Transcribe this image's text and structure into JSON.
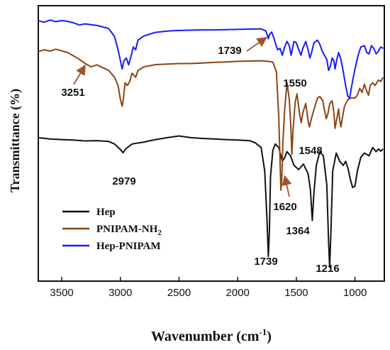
{
  "chart_data": {
    "type": "line",
    "xlabel": "Wavenumber (cm",
    "xlabel_sup": "-1",
    "xlabel_end": ")",
    "ylabel": "Transmittance (%)",
    "xlim": [
      3700,
      750
    ],
    "x_reversed": true,
    "ylim": [
      0,
      100
    ],
    "x_ticks": [
      3500,
      3000,
      2500,
      2000,
      1500,
      1000
    ],
    "y_ticks_shown": false,
    "grid": false,
    "legend_position": "bottom-left",
    "series": [
      {
        "name": "Hep",
        "name_sub": "",
        "color": "#111111",
        "points": [
          [
            3700,
            52.1
          ],
          [
            3600,
            51.6
          ],
          [
            3500,
            51.4
          ],
          [
            3400,
            51.2
          ],
          [
            3300,
            50.9
          ],
          [
            3200,
            51.0
          ],
          [
            3100,
            50.7
          ],
          [
            3050,
            49.8
          ],
          [
            3000,
            47.8
          ],
          [
            2979,
            46.6
          ],
          [
            2950,
            48.2
          ],
          [
            2900,
            49.8
          ],
          [
            2800,
            50.5
          ],
          [
            2700,
            51.4
          ],
          [
            2600,
            52.1
          ],
          [
            2500,
            52.7
          ],
          [
            2400,
            52.1
          ],
          [
            2300,
            51.8
          ],
          [
            2200,
            51.6
          ],
          [
            2100,
            51.4
          ],
          [
            2000,
            51.2
          ],
          [
            1900,
            51.0
          ],
          [
            1850,
            50.2
          ],
          [
            1800,
            48.5
          ],
          [
            1770,
            40.0
          ],
          [
            1750,
            22.0
          ],
          [
            1739,
            9.0
          ],
          [
            1730,
            18.0
          ],
          [
            1720,
            38.0
          ],
          [
            1700,
            47.5
          ],
          [
            1680,
            49.8
          ],
          [
            1650,
            48.5
          ],
          [
            1620,
            43.5
          ],
          [
            1600,
            44.8
          ],
          [
            1580,
            47.0
          ],
          [
            1550,
            45.5
          ],
          [
            1520,
            42.0
          ],
          [
            1480,
            40.5
          ],
          [
            1440,
            42.5
          ],
          [
            1400,
            39.0
          ],
          [
            1380,
            33.0
          ],
          [
            1364,
            22.0
          ],
          [
            1350,
            32.0
          ],
          [
            1330,
            42.0
          ],
          [
            1300,
            47.0
          ],
          [
            1270,
            45.5
          ],
          [
            1240,
            35.0
          ],
          [
            1225,
            14.0
          ],
          [
            1216,
            5.0
          ],
          [
            1205,
            18.0
          ],
          [
            1190,
            40.0
          ],
          [
            1160,
            46.5
          ],
          [
            1130,
            43.5
          ],
          [
            1100,
            42.0
          ],
          [
            1080,
            43.5
          ],
          [
            1060,
            41.0
          ],
          [
            1040,
            37.0
          ],
          [
            1020,
            34.0
          ],
          [
            1000,
            34.5
          ],
          [
            980,
            40.0
          ],
          [
            950,
            45.0
          ],
          [
            920,
            46.5
          ],
          [
            880,
            45.5
          ],
          [
            850,
            48.5
          ],
          [
            820,
            47.0
          ],
          [
            800,
            48.0
          ],
          [
            780,
            47.2
          ],
          [
            760,
            48.0
          ]
        ]
      },
      {
        "name": "PNIPAM-NH",
        "name_sub": "2",
        "color": "#8b4513",
        "points": [
          [
            3700,
            83.3
          ],
          [
            3650,
            84.0
          ],
          [
            3600,
            83.5
          ],
          [
            3550,
            84.2
          ],
          [
            3500,
            83.6
          ],
          [
            3450,
            83.0
          ],
          [
            3400,
            81.8
          ],
          [
            3350,
            80.5
          ],
          [
            3300,
            79.0
          ],
          [
            3251,
            77.8
          ],
          [
            3200,
            78.5
          ],
          [
            3150,
            77.5
          ],
          [
            3100,
            76.5
          ],
          [
            3050,
            74.0
          ],
          [
            3020,
            71.0
          ],
          [
            3000,
            66.0
          ],
          [
            2985,
            63.5
          ],
          [
            2975,
            66.0
          ],
          [
            2960,
            72.0
          ],
          [
            2940,
            71.0
          ],
          [
            2920,
            72.5
          ],
          [
            2900,
            75.5
          ],
          [
            2870,
            74.0
          ],
          [
            2850,
            76.5
          ],
          [
            2800,
            77.8
          ],
          [
            2750,
            78.2
          ],
          [
            2700,
            78.6
          ],
          [
            2600,
            78.8
          ],
          [
            2500,
            79.0
          ],
          [
            2400,
            79.0
          ],
          [
            2300,
            79.2
          ],
          [
            2200,
            79.4
          ],
          [
            2100,
            79.6
          ],
          [
            2000,
            79.8
          ],
          [
            1900,
            79.9
          ],
          [
            1800,
            80.0
          ],
          [
            1740,
            79.8
          ],
          [
            1700,
            79.5
          ],
          [
            1670,
            76.0
          ],
          [
            1650,
            60.0
          ],
          [
            1640,
            45.0
          ],
          [
            1632,
            33.0
          ],
          [
            1625,
            37.0
          ],
          [
            1615,
            50.0
          ],
          [
            1600,
            62.0
          ],
          [
            1580,
            72.0
          ],
          [
            1560,
            66.0
          ],
          [
            1548,
            57.0
          ],
          [
            1538,
            46.0
          ],
          [
            1528,
            55.0
          ],
          [
            1510,
            65.0
          ],
          [
            1495,
            68.0
          ],
          [
            1470,
            60.0
          ],
          [
            1458,
            57.5
          ],
          [
            1445,
            61.0
          ],
          [
            1420,
            64.5
          ],
          [
            1400,
            58.0
          ],
          [
            1388,
            56.0
          ],
          [
            1375,
            58.5
          ],
          [
            1365,
            60.0
          ],
          [
            1345,
            63.0
          ],
          [
            1320,
            66.5
          ],
          [
            1300,
            67.0
          ],
          [
            1275,
            65.5
          ],
          [
            1260,
            62.0
          ],
          [
            1245,
            59.0
          ],
          [
            1230,
            61.0
          ],
          [
            1215,
            64.5
          ],
          [
            1195,
            65.5
          ],
          [
            1180,
            61.0
          ],
          [
            1170,
            55.5
          ],
          [
            1155,
            59.0
          ],
          [
            1140,
            62.5
          ],
          [
            1130,
            58.5
          ],
          [
            1120,
            56.0
          ],
          [
            1105,
            60.0
          ],
          [
            1090,
            63.5
          ],
          [
            1060,
            66.0
          ],
          [
            1030,
            66.5
          ],
          [
            1000,
            66.5
          ],
          [
            980,
            67.5
          ],
          [
            960,
            70.0
          ],
          [
            940,
            68.5
          ],
          [
            920,
            71.5
          ],
          [
            900,
            69.0
          ],
          [
            885,
            67.5
          ],
          [
            870,
            71.0
          ],
          [
            850,
            72.0
          ],
          [
            830,
            71.0
          ],
          [
            800,
            73.0
          ],
          [
            780,
            72.5
          ],
          [
            760,
            74.0
          ]
        ]
      },
      {
        "name": "Hep-PNIPAM",
        "name_sub": "",
        "color": "#1a1aff",
        "points": [
          [
            3700,
            94.5
          ],
          [
            3650,
            94.0
          ],
          [
            3600,
            94.8
          ],
          [
            3550,
            94.2
          ],
          [
            3500,
            94.6
          ],
          [
            3450,
            94.3
          ],
          [
            3400,
            93.8
          ],
          [
            3350,
            93.0
          ],
          [
            3300,
            93.4
          ],
          [
            3250,
            93.1
          ],
          [
            3200,
            92.8
          ],
          [
            3150,
            92.3
          ],
          [
            3100,
            91.7
          ],
          [
            3050,
            88.8
          ],
          [
            3020,
            84.0
          ],
          [
            3000,
            80.0
          ],
          [
            2985,
            77.0
          ],
          [
            2970,
            80.0
          ],
          [
            2950,
            81.0
          ],
          [
            2930,
            78.5
          ],
          [
            2910,
            81.5
          ],
          [
            2890,
            85.0
          ],
          [
            2870,
            84.0
          ],
          [
            2850,
            87.5
          ],
          [
            2800,
            89.0
          ],
          [
            2750,
            89.7
          ],
          [
            2700,
            90.3
          ],
          [
            2600,
            90.8
          ],
          [
            2500,
            91.0
          ],
          [
            2400,
            91.1
          ],
          [
            2300,
            91.2
          ],
          [
            2200,
            91.2
          ],
          [
            2100,
            91.3
          ],
          [
            2000,
            91.4
          ],
          [
            1900,
            91.5
          ],
          [
            1800,
            91.6
          ],
          [
            1760,
            90.8
          ],
          [
            1745,
            89.0
          ],
          [
            1739,
            88.0
          ],
          [
            1730,
            89.5
          ],
          [
            1710,
            90.4
          ],
          [
            1690,
            88.0
          ],
          [
            1680,
            86.5
          ],
          [
            1660,
            84.0
          ],
          [
            1640,
            84.5
          ],
          [
            1620,
            82.0
          ],
          [
            1600,
            85.0
          ],
          [
            1580,
            87.0
          ],
          [
            1560,
            85.5
          ],
          [
            1545,
            82.0
          ],
          [
            1535,
            84.0
          ],
          [
            1520,
            87.0
          ],
          [
            1500,
            86.5
          ],
          [
            1475,
            83.5
          ],
          [
            1460,
            82.0
          ],
          [
            1445,
            84.5
          ],
          [
            1420,
            87.0
          ],
          [
            1400,
            84.0
          ],
          [
            1385,
            81.0
          ],
          [
            1370,
            83.0
          ],
          [
            1350,
            86.5
          ],
          [
            1320,
            87.5
          ],
          [
            1300,
            86.0
          ],
          [
            1280,
            83.5
          ],
          [
            1260,
            82.0
          ],
          [
            1240,
            80.5
          ],
          [
            1225,
            76.5
          ],
          [
            1210,
            78.0
          ],
          [
            1195,
            81.0
          ],
          [
            1180,
            80.0
          ],
          [
            1170,
            77.0
          ],
          [
            1155,
            80.5
          ],
          [
            1140,
            83.0
          ],
          [
            1120,
            80.5
          ],
          [
            1100,
            76.0
          ],
          [
            1080,
            71.0
          ],
          [
            1060,
            67.0
          ],
          [
            1045,
            66.5
          ],
          [
            1030,
            70.5
          ],
          [
            1010,
            75.0
          ],
          [
            990,
            79.0
          ],
          [
            970,
            82.5
          ],
          [
            950,
            85.0
          ],
          [
            920,
            85.5
          ],
          [
            900,
            83.0
          ],
          [
            880,
            82.5
          ],
          [
            860,
            85.5
          ],
          [
            840,
            84.5
          ],
          [
            820,
            82.5
          ],
          [
            800,
            83.5
          ],
          [
            780,
            85.0
          ],
          [
            760,
            84.5
          ]
        ]
      }
    ],
    "annotations": [
      {
        "label": "1739",
        "x": 1739,
        "y": 88.0
      },
      {
        "label": "1550",
        "x": 1550,
        "y": 76.0
      },
      {
        "label": "3251",
        "x": 3251,
        "y": 77.8
      },
      {
        "label": "1548",
        "x": 1548,
        "y": 48.0
      },
      {
        "label": "2979",
        "x": 2979,
        "y": 46.6
      },
      {
        "label": "1620",
        "x": 1620,
        "y": 43.5
      },
      {
        "label": "1364",
        "x": 1364,
        "y": 22.0
      },
      {
        "label": "1739",
        "x": 1739,
        "y": 9.0
      },
      {
        "label": "1216",
        "x": 1216,
        "y": 5.0
      }
    ]
  }
}
